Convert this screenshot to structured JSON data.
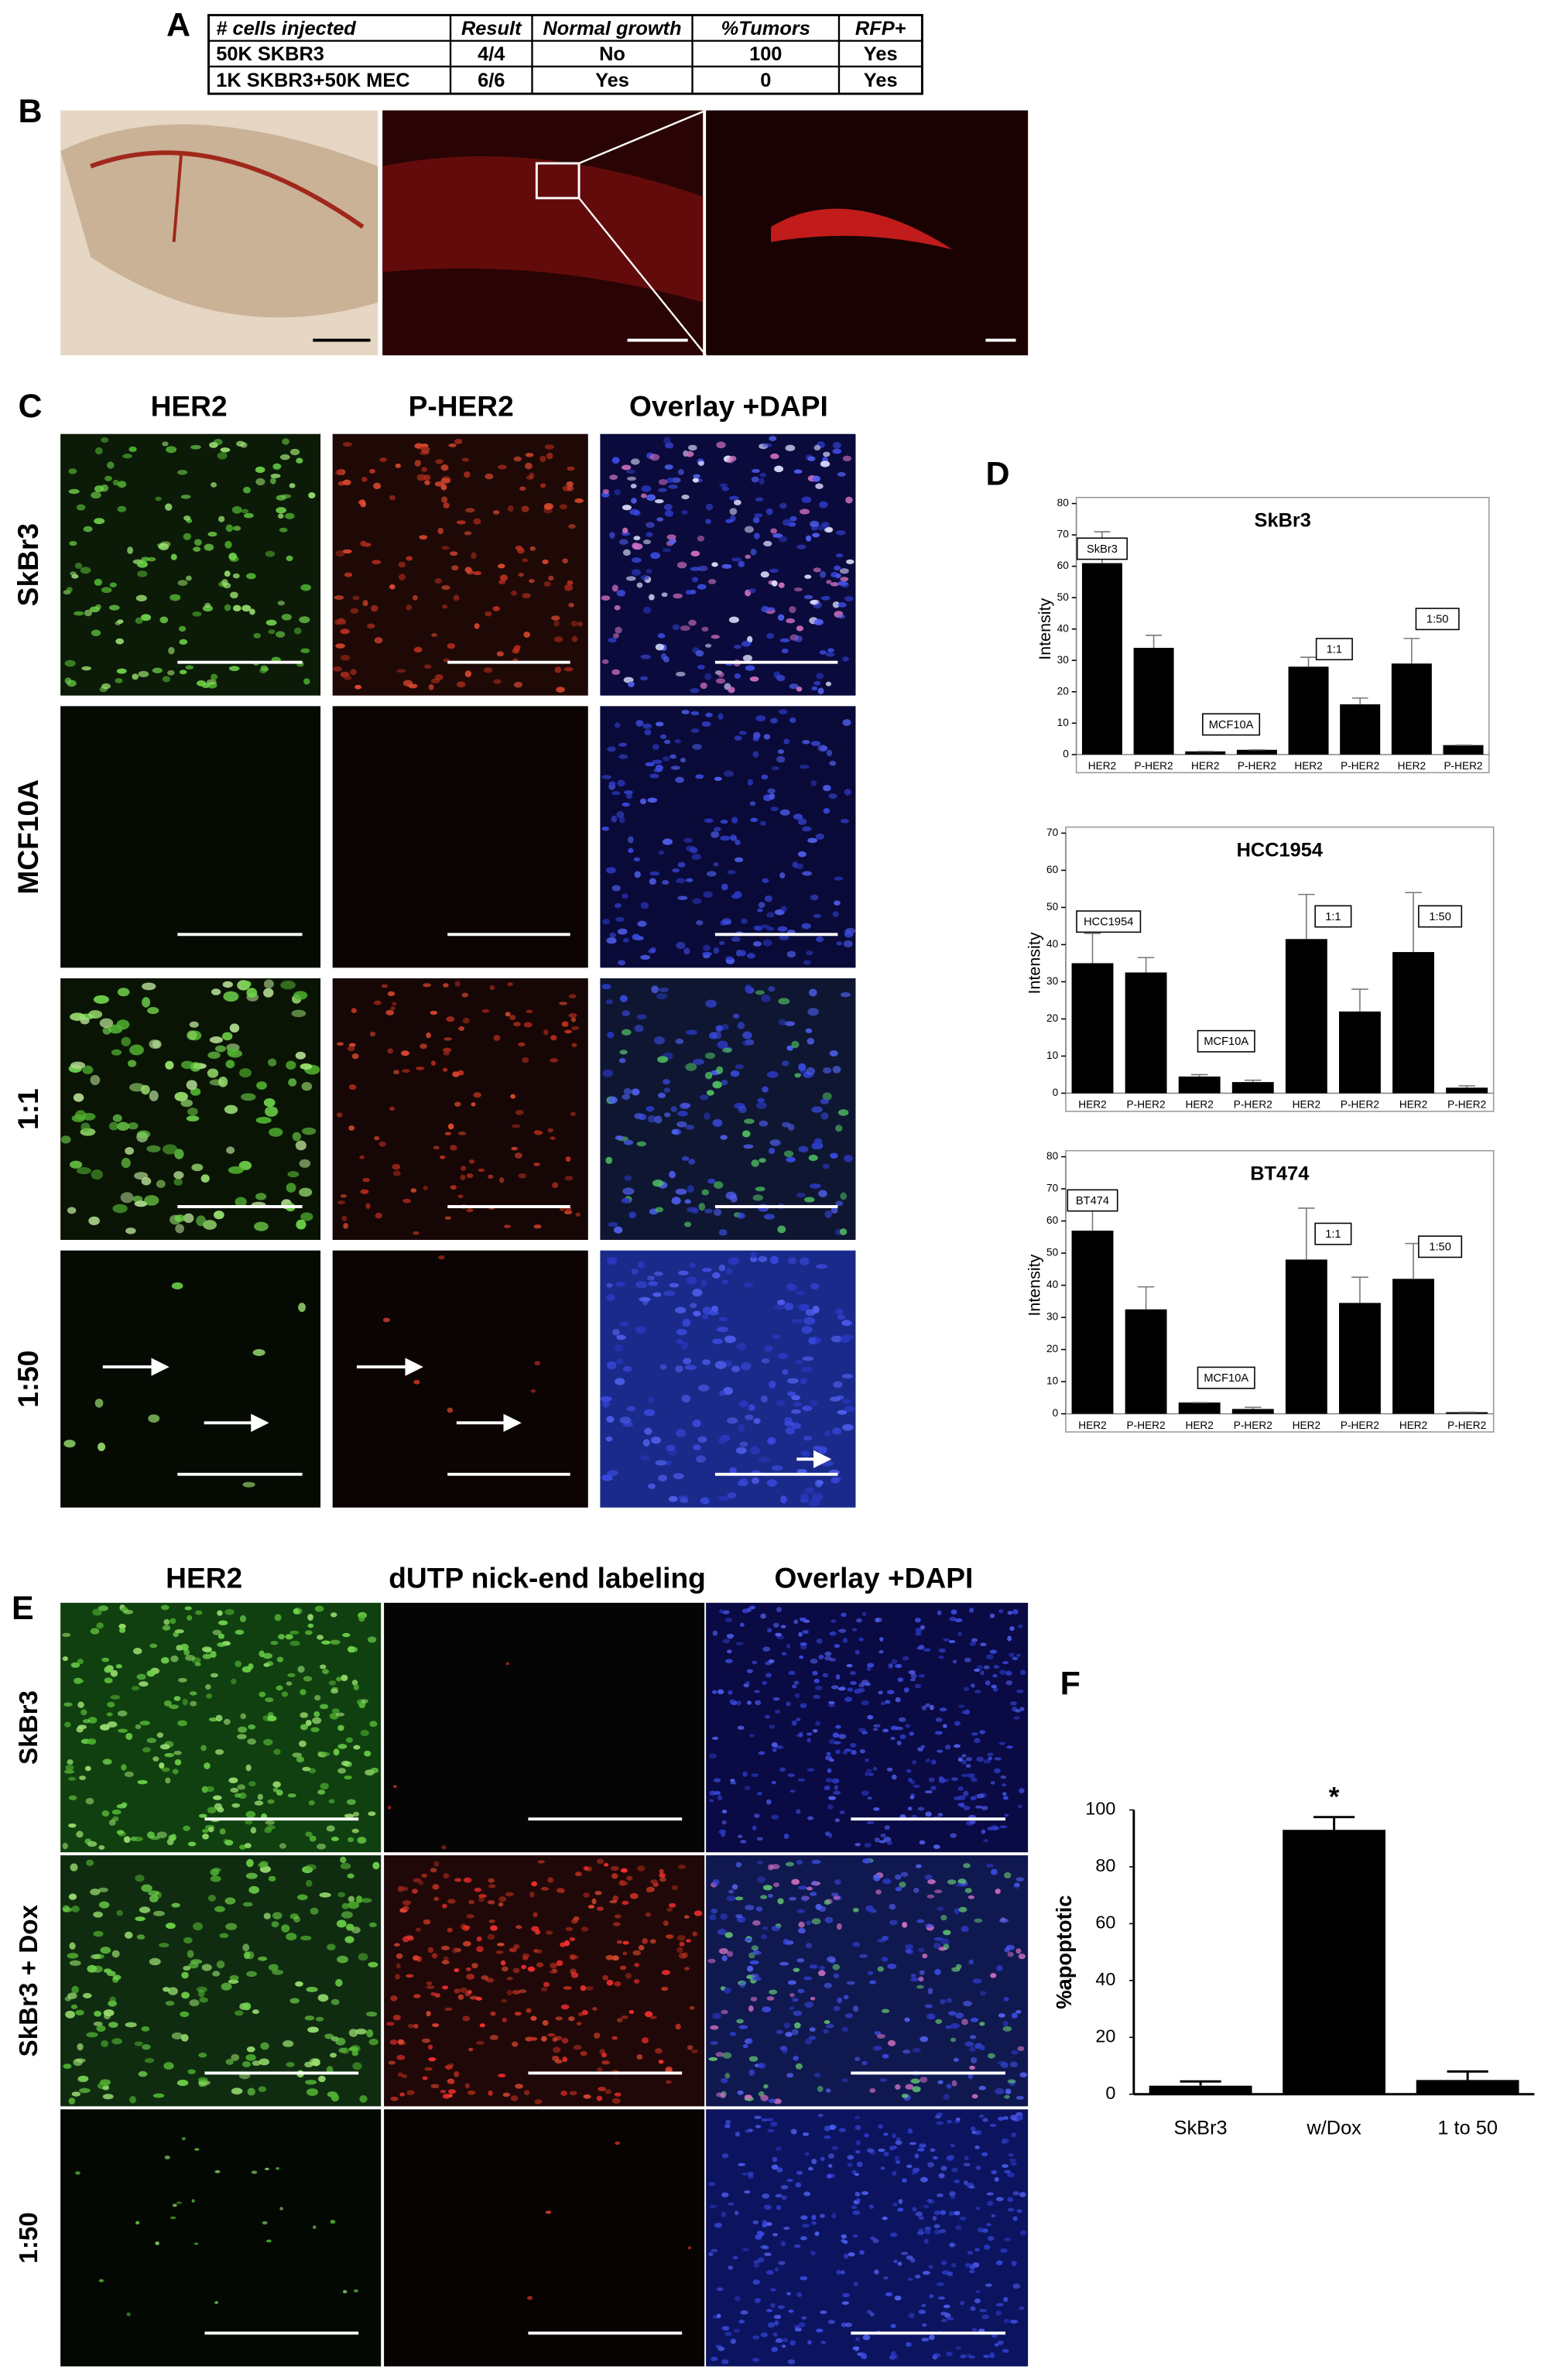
{
  "panel_labels": [
    "A",
    "B",
    "C",
    "D",
    "E",
    "F"
  ],
  "table": {
    "header": [
      "# cells injected",
      "Result",
      "Normal growth",
      "%Tumors",
      "RFP+"
    ],
    "rows": [
      [
        "50K SKBR3",
        "4/4",
        "No",
        "100",
        "Yes"
      ],
      [
        "1K SKBR3+50K MEC",
        "6/6",
        "Yes",
        "0",
        "Yes"
      ]
    ]
  },
  "panel_c": {
    "columns": [
      "HER2",
      "P-HER2",
      "Overlay +DAPI"
    ],
    "rows": [
      "SkBr3",
      "MCF10A",
      "1:1",
      "1:50"
    ]
  },
  "panel_e": {
    "columns": [
      "HER2",
      "dUTP nick-end labeling",
      "Overlay +DAPI"
    ],
    "rows": [
      "SkBr3",
      "SkBr3 + Dox",
      "1:50"
    ]
  },
  "chart_data": [
    {
      "type": "bar",
      "title": "SkBr3",
      "y_label": "Intensity",
      "categories": [
        "HER2",
        "P-HER2",
        "HER2",
        "P-HER2",
        "HER2",
        "P-HER2",
        "HER2",
        "P-HER2"
      ],
      "values": [
        61,
        34,
        1,
        1.5,
        28,
        16,
        29,
        3
      ],
      "errors": [
        10,
        4,
        0,
        0,
        3,
        2,
        8,
        0
      ],
      "color": "#000000",
      "ylim": [
        0,
        80
      ],
      "yticks": [
        0,
        10,
        20,
        30,
        40,
        50,
        60,
        70,
        80
      ],
      "annotations": [
        "SkBr3",
        "MCF10A",
        "1:1",
        "1:50"
      ]
    },
    {
      "type": "bar",
      "title": "HCC1954",
      "y_label": "Intensity",
      "categories": [
        "HER2",
        "P-HER2",
        "HER2",
        "P-HER2",
        "HER2",
        "P-HER2",
        "HER2",
        "P-HER2"
      ],
      "values": [
        35,
        32.5,
        4.5,
        3,
        41.5,
        22,
        38,
        1.5
      ],
      "errors": [
        8,
        4,
        0.5,
        0.5,
        12,
        6,
        16,
        0.5
      ],
      "color": "#000000",
      "ylim": [
        0,
        70
      ],
      "yticks": [
        0,
        10,
        20,
        30,
        40,
        50,
        60,
        70
      ],
      "annotations": [
        "HCC1954",
        "MCF10A",
        "1:1",
        "1:50"
      ]
    },
    {
      "type": "bar",
      "title": "BT474",
      "y_label": "Intensity",
      "categories": [
        "HER2",
        "P-HER2",
        "HER2",
        "P-HER2",
        "HER2",
        "P-HER2",
        "HER2",
        "P-HER2"
      ],
      "values": [
        57,
        32.5,
        3.5,
        1.5,
        48,
        34.5,
        42,
        0.5
      ],
      "errors": [
        12,
        7,
        0,
        0.5,
        16,
        8,
        11,
        0
      ],
      "color": "#000000",
      "ylim": [
        0,
        80
      ],
      "yticks": [
        0,
        10,
        20,
        30,
        40,
        50,
        60,
        70,
        80
      ],
      "annotations": [
        "BT474",
        "MCF10A",
        "1:1",
        "1:50"
      ]
    },
    {
      "type": "bar",
      "y_label": "%apoptotic",
      "categories": [
        "SkBr3",
        "w/Dox",
        "1 to 50"
      ],
      "values": [
        3,
        93,
        5
      ],
      "errors": [
        1.5,
        4.5,
        3
      ],
      "color": "#000000",
      "ylim": [
        0,
        100
      ],
      "yticks": [
        0,
        20,
        40,
        60,
        80,
        100
      ],
      "annotations": [
        "*"
      ]
    }
  ]
}
